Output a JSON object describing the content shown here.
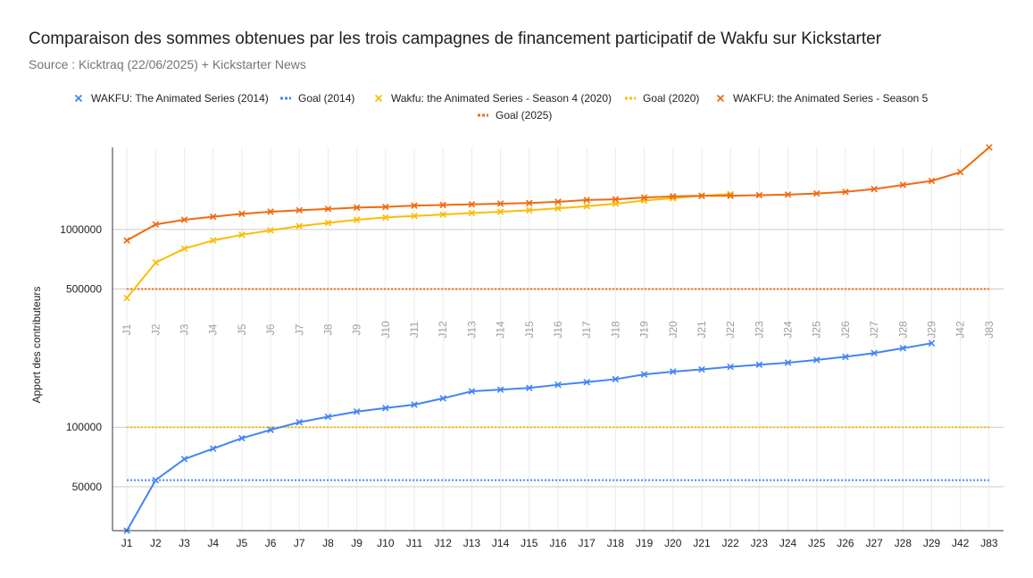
{
  "title": "Comparaison des sommes obtenues par les trois campagnes de financement participatif de Wakfu sur Kickstarter",
  "subtitle": "Source : Kicktraq (22/06/2025) + Kickstarter News",
  "chart_data": {
    "type": "line",
    "yscale": "log",
    "ylim": [
      30000,
      2600000
    ],
    "ylabel": "Apport des contributeurs",
    "xlabel": "",
    "yticks": [
      50000,
      100000,
      500000,
      1000000
    ],
    "categories": [
      "J1",
      "J2",
      "J3",
      "J4",
      "J5",
      "J6",
      "J7",
      "J8",
      "J9",
      "J10",
      "J11",
      "J12",
      "J13",
      "J14",
      "J15",
      "J16",
      "J17",
      "J18",
      "J19",
      "J20",
      "J21",
      "J22",
      "J23",
      "J24",
      "J25",
      "J26",
      "J27",
      "J28",
      "J29",
      "J42",
      "J83"
    ],
    "legend_position": "top",
    "grid": true,
    "series": [
      {
        "name": "WAKFU: The Animated Series (2014)",
        "color": "#4285f4",
        "marker": "x",
        "values": [
          30000,
          54000,
          69000,
          78000,
          88000,
          97000,
          106000,
          113000,
          120000,
          125000,
          130000,
          140000,
          152000,
          155000,
          158000,
          164000,
          169000,
          175000,
          185000,
          191000,
          196000,
          202000,
          207000,
          212000,
          219000,
          227000,
          237000,
          251000,
          266000,
          null,
          null
        ]
      },
      {
        "name": "Goal (2014)",
        "color": "#4285f4",
        "style": "dotted",
        "constant": 54000
      },
      {
        "name": "Wakfu: the Animated Series - Season 4 (2020)",
        "color": "#fbbc04",
        "marker": "x",
        "values": [
          450000,
          680000,
          800000,
          880000,
          940000,
          990000,
          1040000,
          1080000,
          1120000,
          1150000,
          1170000,
          1190000,
          1210000,
          1230000,
          1250000,
          1280000,
          1310000,
          1350000,
          1400000,
          1440000,
          1480000,
          1510000,
          null,
          null,
          null,
          null,
          null,
          null,
          null,
          null,
          null
        ]
      },
      {
        "name": "Goal (2020)",
        "color": "#fbbc04",
        "style": "dotted",
        "constant": 100000
      },
      {
        "name": "WAKFU: the Animated Series - Season 5",
        "color": "#f06a0f",
        "marker": "x",
        "values": [
          880000,
          1060000,
          1120000,
          1160000,
          1200000,
          1230000,
          1250000,
          1270000,
          1290000,
          1300000,
          1320000,
          1330000,
          1340000,
          1350000,
          1360000,
          1380000,
          1410000,
          1420000,
          1450000,
          1470000,
          1480000,
          1480000,
          1490000,
          1500000,
          1520000,
          1550000,
          1600000,
          1680000,
          1760000,
          1950000,
          2600000
        ]
      },
      {
        "name": "Goal (2025)",
        "color": "#f06a0f",
        "style": "dotted",
        "constant": 500000
      }
    ]
  }
}
